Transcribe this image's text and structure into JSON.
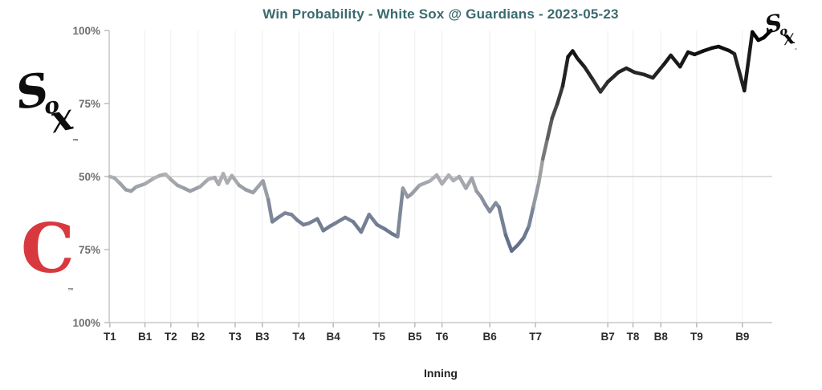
{
  "title": "Win Probability - White Sox @ Guardians - 2023-05-23",
  "colors": {
    "title": "#3b6a6e",
    "axis": "#c9c9c9",
    "tick": "#bbbbbb",
    "gridline_50": "#cccccc",
    "grid_vertical": "#eeeeee",
    "y_label": "#6f6f6f",
    "x_label": "#2b2b2b",
    "line_base": "#b5b5b5",
    "line_top_team": "#000000",
    "line_bottom_team": "#2e4470",
    "guardians_red": "#d8393f",
    "sox_black": "#0d0d0d"
  },
  "logos": {
    "sox": {
      "s": "S",
      "o": "o",
      "x": "x",
      "tm": "™"
    },
    "guardians": {
      "c": "C",
      "tm": "™"
    }
  },
  "chart_data": {
    "type": "line",
    "title": "Win Probability - White Sox @ Guardians - 2023-05-23",
    "xlabel": "Inning",
    "team_top": "White Sox",
    "team_bottom": "Guardians",
    "series_name": "White Sox win probability (%)",
    "ylim": [
      0,
      100
    ],
    "grid": {
      "horizontal_at": 50,
      "vertical_at_ticks": true
    },
    "legend": "none",
    "y_ticks": [
      {
        "label": "100%",
        "value": 100
      },
      {
        "label": "75%",
        "value": 75
      },
      {
        "label": "50%",
        "value": 50
      },
      {
        "label": "75%",
        "value": 25
      },
      {
        "label": "100%",
        "value": 0
      }
    ],
    "x_ticks": [
      {
        "label": "T1",
        "pos": 0.001
      },
      {
        "label": "B1",
        "pos": 0.054
      },
      {
        "label": "T2",
        "pos": 0.093
      },
      {
        "label": "B2",
        "pos": 0.134
      },
      {
        "label": "T3",
        "pos": 0.19
      },
      {
        "label": "B3",
        "pos": 0.231
      },
      {
        "label": "T4",
        "pos": 0.286
      },
      {
        "label": "B4",
        "pos": 0.338
      },
      {
        "label": "T5",
        "pos": 0.407
      },
      {
        "label": "B5",
        "pos": 0.461
      },
      {
        "label": "T6",
        "pos": 0.502
      },
      {
        "label": "B6",
        "pos": 0.574
      },
      {
        "label": "T7",
        "pos": 0.643
      },
      {
        "label": "B7",
        "pos": 0.752
      },
      {
        "label": "T8",
        "pos": 0.79
      },
      {
        "label": "B8",
        "pos": 0.832
      },
      {
        "label": "T9",
        "pos": 0.886
      },
      {
        "label": "B9",
        "pos": 0.955
      }
    ],
    "points": [
      [
        0.001,
        50
      ],
      [
        0.008,
        49.5
      ],
      [
        0.017,
        47.5
      ],
      [
        0.025,
        45.5
      ],
      [
        0.033,
        45
      ],
      [
        0.041,
        46.5
      ],
      [
        0.054,
        47.5
      ],
      [
        0.068,
        49.5
      ],
      [
        0.076,
        50.3
      ],
      [
        0.085,
        50.8
      ],
      [
        0.093,
        49
      ],
      [
        0.103,
        47
      ],
      [
        0.113,
        46
      ],
      [
        0.122,
        45
      ],
      [
        0.137,
        46.5
      ],
      [
        0.149,
        49
      ],
      [
        0.159,
        49.7
      ],
      [
        0.165,
        47.3
      ],
      [
        0.172,
        51
      ],
      [
        0.178,
        47.8
      ],
      [
        0.185,
        50.3
      ],
      [
        0.196,
        47
      ],
      [
        0.206,
        45.5
      ],
      [
        0.217,
        44.5
      ],
      [
        0.232,
        48.5
      ],
      [
        0.24,
        42
      ],
      [
        0.246,
        34.5
      ],
      [
        0.255,
        36
      ],
      [
        0.265,
        37.5
      ],
      [
        0.275,
        37
      ],
      [
        0.284,
        35
      ],
      [
        0.293,
        33.5
      ],
      [
        0.301,
        34
      ],
      [
        0.314,
        35.5
      ],
      [
        0.323,
        31.5
      ],
      [
        0.333,
        33
      ],
      [
        0.341,
        34
      ],
      [
        0.356,
        36
      ],
      [
        0.368,
        34.5
      ],
      [
        0.38,
        31
      ],
      [
        0.392,
        37
      ],
      [
        0.404,
        33.5
      ],
      [
        0.416,
        32
      ],
      [
        0.426,
        30.5
      ],
      [
        0.435,
        29.4
      ],
      [
        0.443,
        46
      ],
      [
        0.45,
        43
      ],
      [
        0.456,
        44
      ],
      [
        0.468,
        47
      ],
      [
        0.484,
        48.5
      ],
      [
        0.494,
        50.5
      ],
      [
        0.502,
        47.5
      ],
      [
        0.512,
        50.5
      ],
      [
        0.519,
        48.6
      ],
      [
        0.528,
        50
      ],
      [
        0.538,
        46
      ],
      [
        0.547,
        49.5
      ],
      [
        0.554,
        45
      ],
      [
        0.561,
        43
      ],
      [
        0.567,
        40.5
      ],
      [
        0.574,
        38
      ],
      [
        0.583,
        41
      ],
      [
        0.588,
        39.5
      ],
      [
        0.598,
        30
      ],
      [
        0.607,
        24.5
      ],
      [
        0.616,
        26.5
      ],
      [
        0.625,
        29
      ],
      [
        0.633,
        33
      ],
      [
        0.64,
        40
      ],
      [
        0.648,
        48
      ],
      [
        0.654,
        56
      ],
      [
        0.661,
        63
      ],
      [
        0.668,
        70
      ],
      [
        0.676,
        75
      ],
      [
        0.684,
        81
      ],
      [
        0.692,
        91
      ],
      [
        0.699,
        93
      ],
      [
        0.706,
        90.5
      ],
      [
        0.717,
        87.5
      ],
      [
        0.73,
        83
      ],
      [
        0.741,
        79
      ],
      [
        0.752,
        82.4
      ],
      [
        0.768,
        85.7
      ],
      [
        0.78,
        87.1
      ],
      [
        0.792,
        85.7
      ],
      [
        0.807,
        84.9
      ],
      [
        0.82,
        83.8
      ],
      [
        0.837,
        88.5
      ],
      [
        0.847,
        91.5
      ],
      [
        0.861,
        87.6
      ],
      [
        0.873,
        92.6
      ],
      [
        0.883,
        91.8
      ],
      [
        0.896,
        93
      ],
      [
        0.909,
        94
      ],
      [
        0.919,
        94.5
      ],
      [
        0.935,
        93.1
      ],
      [
        0.943,
        92
      ],
      [
        0.958,
        79.4
      ],
      [
        0.97,
        99.5
      ],
      [
        0.979,
        96.7
      ],
      [
        0.987,
        97.5
      ],
      [
        0.998,
        100
      ]
    ]
  }
}
